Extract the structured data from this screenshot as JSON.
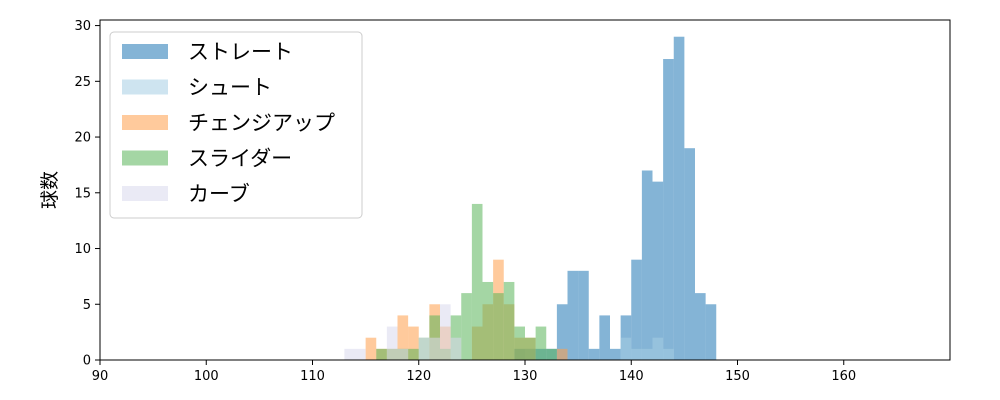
{
  "chart_data": {
    "type": "histogram",
    "xlabel": "",
    "ylabel": "球数",
    "xlim": [
      90,
      170
    ],
    "ylim": [
      0,
      30.5
    ],
    "xticks": [
      90,
      100,
      110,
      120,
      130,
      140,
      150,
      160
    ],
    "yticks": [
      0,
      5,
      10,
      15,
      20,
      25,
      30
    ],
    "grid": false,
    "legend_position": "top-left",
    "bin_width": 1,
    "series": [
      {
        "name": "ストレート",
        "color": "#1f77b4",
        "bins": [
          [
            129,
            1
          ],
          [
            130,
            1
          ],
          [
            131,
            1
          ],
          [
            132,
            1
          ],
          [
            133,
            5
          ],
          [
            134,
            8
          ],
          [
            135,
            8
          ],
          [
            136,
            1
          ],
          [
            137,
            4
          ],
          [
            138,
            1
          ],
          [
            139,
            4
          ],
          [
            140,
            9
          ],
          [
            141,
            17
          ],
          [
            142,
            16
          ],
          [
            143,
            27
          ],
          [
            144,
            29
          ],
          [
            145,
            19
          ],
          [
            146,
            6
          ],
          [
            147,
            5
          ]
        ]
      },
      {
        "name": "シュート",
        "color": "#a6cee3",
        "bins": [
          [
            130,
            1
          ],
          [
            139,
            2
          ],
          [
            140,
            1
          ],
          [
            141,
            1
          ],
          [
            142,
            2
          ],
          [
            143,
            1
          ]
        ]
      },
      {
        "name": "チェンジアップ",
        "color": "#ff9f4a",
        "bins": [
          [
            115,
            2
          ],
          [
            116,
            1
          ],
          [
            117,
            1
          ],
          [
            118,
            4
          ],
          [
            119,
            3
          ],
          [
            121,
            5
          ],
          [
            122,
            3
          ],
          [
            125,
            3
          ],
          [
            126,
            5
          ],
          [
            127,
            9
          ],
          [
            128,
            5
          ],
          [
            129,
            2
          ],
          [
            130,
            2
          ],
          [
            133,
            1
          ]
        ]
      },
      {
        "name": "スライダー",
        "color": "#5ab55a",
        "bins": [
          [
            116,
            1
          ],
          [
            117,
            1
          ],
          [
            118,
            1
          ],
          [
            119,
            1
          ],
          [
            120,
            2
          ],
          [
            121,
            4
          ],
          [
            122,
            1
          ],
          [
            123,
            4
          ],
          [
            124,
            6
          ],
          [
            125,
            14
          ],
          [
            126,
            7
          ],
          [
            127,
            6
          ],
          [
            128,
            7
          ],
          [
            129,
            3
          ],
          [
            130,
            2
          ],
          [
            131,
            3
          ],
          [
            132,
            1
          ]
        ]
      },
      {
        "name": "カーブ",
        "color": "#d8d8ec",
        "bins": [
          [
            113,
            1
          ],
          [
            114,
            1
          ],
          [
            117,
            3
          ],
          [
            118,
            1
          ],
          [
            120,
            2
          ],
          [
            121,
            2
          ],
          [
            122,
            5
          ],
          [
            123,
            2
          ]
        ]
      }
    ]
  }
}
